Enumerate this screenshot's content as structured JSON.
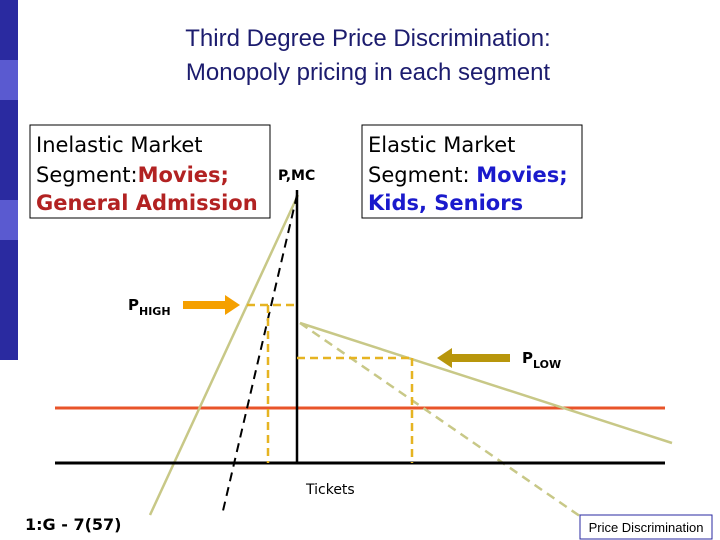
{
  "header": {
    "title_lines": [
      "Third Degree Price Discrimination:",
      "Monopoly pricing in each segment"
    ]
  },
  "left_box": {
    "line1": "Inelastic Market",
    "line2_plain": "Segment:",
    "line2_highlight": "Movies;",
    "line3": "General Admission"
  },
  "right_box": {
    "line1": "Elastic Market",
    "line2_plain": "Segment: ",
    "line2_highlight": "Movies;",
    "line3": "Kids, Seniors"
  },
  "axis": {
    "y_label": "P,MC",
    "x_label": "Tickets"
  },
  "labels": {
    "p_high": {
      "main": "P",
      "sub": "HIGH"
    },
    "p_low": {
      "main": "P",
      "sub": "LOW"
    }
  },
  "footer": {
    "slide_id": "1:G - 7(57)",
    "section": "Price Discrimination"
  }
}
